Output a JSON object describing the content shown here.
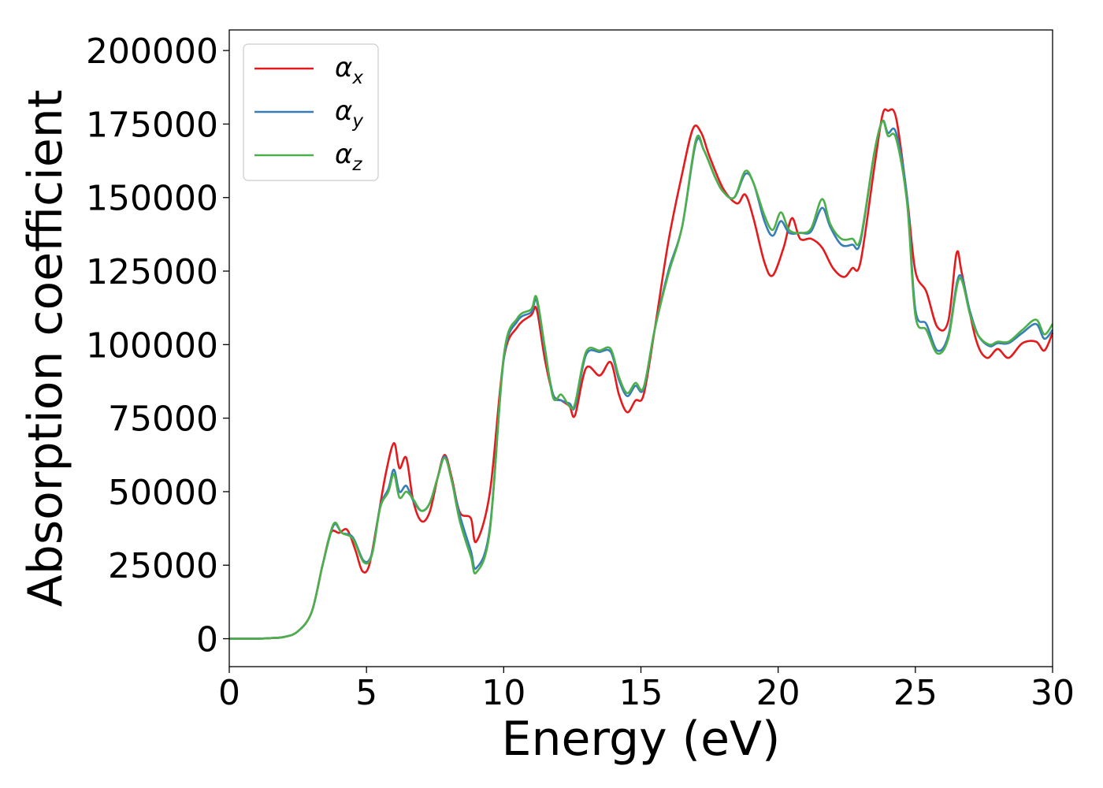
{
  "chart_data": {
    "type": "line",
    "title": "",
    "xlabel": "Energy (eV)",
    "ylabel": "Absorption coefficient",
    "xlim": [
      0,
      30
    ],
    "ylim": [
      -9500,
      207000
    ],
    "xticks": [
      "0",
      "5",
      "10",
      "15",
      "20",
      "25",
      "30"
    ],
    "yticks": [
      "0",
      "25000",
      "50000",
      "75000",
      "100000",
      "125000",
      "150000",
      "175000",
      "200000"
    ],
    "grid": false,
    "legend": "top-left",
    "series": [
      {
        "name": "αx",
        "base": "α",
        "sub": "x",
        "color": "#e41a1c",
        "points": [
          [
            0,
            0
          ],
          [
            1,
            0
          ],
          [
            1.5,
            200
          ],
          [
            2,
            600
          ],
          [
            2.5,
            2500
          ],
          [
            3,
            9000
          ],
          [
            3.4,
            25000
          ],
          [
            3.7,
            36000
          ],
          [
            4.0,
            36000
          ],
          [
            4.3,
            37000
          ],
          [
            4.6,
            30000
          ],
          [
            4.85,
            23000
          ],
          [
            5.1,
            25000
          ],
          [
            5.4,
            40000
          ],
          [
            5.7,
            56000
          ],
          [
            6.0,
            66500
          ],
          [
            6.2,
            58000
          ],
          [
            6.45,
            61500
          ],
          [
            6.7,
            47000
          ],
          [
            7.0,
            40000
          ],
          [
            7.3,
            43000
          ],
          [
            7.6,
            55000
          ],
          [
            7.85,
            62500
          ],
          [
            8.1,
            55000
          ],
          [
            8.4,
            43000
          ],
          [
            8.8,
            41000
          ],
          [
            9.0,
            33000
          ],
          [
            9.5,
            50000
          ],
          [
            10.0,
            95000
          ],
          [
            10.5,
            106000
          ],
          [
            11.0,
            110000
          ],
          [
            11.2,
            112000
          ],
          [
            11.5,
            95000
          ],
          [
            11.8,
            83000
          ],
          [
            12.1,
            81000
          ],
          [
            12.4,
            79000
          ],
          [
            12.6,
            76000
          ],
          [
            13.0,
            92000
          ],
          [
            13.5,
            89500
          ],
          [
            13.9,
            94000
          ],
          [
            14.2,
            83000
          ],
          [
            14.5,
            77000
          ],
          [
            14.8,
            81000
          ],
          [
            15.1,
            83000
          ],
          [
            15.5,
            105000
          ],
          [
            16.0,
            135000
          ],
          [
            16.5,
            158000
          ],
          [
            16.9,
            173500
          ],
          [
            17.2,
            172000
          ],
          [
            17.5,
            164000
          ],
          [
            18.0,
            153000
          ],
          [
            18.5,
            148000
          ],
          [
            18.8,
            151000
          ],
          [
            19.1,
            143000
          ],
          [
            19.5,
            128000
          ],
          [
            19.8,
            123500
          ],
          [
            20.2,
            133000
          ],
          [
            20.5,
            143000
          ],
          [
            20.8,
            136000
          ],
          [
            21.2,
            136000
          ],
          [
            21.6,
            133000
          ],
          [
            22.0,
            126000
          ],
          [
            22.4,
            123000
          ],
          [
            22.7,
            126000
          ],
          [
            23.0,
            128000
          ],
          [
            23.5,
            160000
          ],
          [
            23.8,
            178000
          ],
          [
            24.0,
            179500
          ],
          [
            24.3,
            177000
          ],
          [
            24.7,
            150000
          ],
          [
            25.0,
            125000
          ],
          [
            25.4,
            118000
          ],
          [
            25.8,
            106000
          ],
          [
            26.2,
            108000
          ],
          [
            26.5,
            131000
          ],
          [
            26.7,
            124000
          ],
          [
            27.2,
            102000
          ],
          [
            27.6,
            95500
          ],
          [
            28.0,
            98500
          ],
          [
            28.4,
            95500
          ],
          [
            28.9,
            100500
          ],
          [
            29.4,
            101000
          ],
          [
            29.7,
            98000
          ],
          [
            30.0,
            104000
          ]
        ]
      },
      {
        "name": "αy",
        "base": "α",
        "sub": "y",
        "color": "#377eb8",
        "points": [
          [
            0,
            0
          ],
          [
            1,
            0
          ],
          [
            1.5,
            200
          ],
          [
            2,
            600
          ],
          [
            2.5,
            2500
          ],
          [
            3,
            9000
          ],
          [
            3.4,
            25000
          ],
          [
            3.8,
            38500
          ],
          [
            4.1,
            36000
          ],
          [
            4.5,
            34500
          ],
          [
            4.9,
            26500
          ],
          [
            5.2,
            29000
          ],
          [
            5.5,
            45000
          ],
          [
            5.8,
            51000
          ],
          [
            6.0,
            57500
          ],
          [
            6.2,
            50000
          ],
          [
            6.45,
            52000
          ],
          [
            6.7,
            47000
          ],
          [
            7.0,
            43500
          ],
          [
            7.3,
            46000
          ],
          [
            7.6,
            55000
          ],
          [
            7.85,
            62000
          ],
          [
            8.1,
            54000
          ],
          [
            8.4,
            42000
          ],
          [
            8.8,
            30000
          ],
          [
            9.0,
            24000
          ],
          [
            9.5,
            38000
          ],
          [
            10.0,
            95000
          ],
          [
            10.5,
            108000
          ],
          [
            11.0,
            111000
          ],
          [
            11.2,
            115000
          ],
          [
            11.5,
            98000
          ],
          [
            11.8,
            83000
          ],
          [
            12.1,
            81000
          ],
          [
            12.4,
            80000
          ],
          [
            12.6,
            79000
          ],
          [
            13.0,
            96500
          ],
          [
            13.5,
            97500
          ],
          [
            13.9,
            97500
          ],
          [
            14.2,
            88000
          ],
          [
            14.5,
            82500
          ],
          [
            14.8,
            86000
          ],
          [
            15.1,
            85000
          ],
          [
            15.5,
            105000
          ],
          [
            16.0,
            125000
          ],
          [
            16.5,
            140000
          ],
          [
            17.0,
            168500
          ],
          [
            17.3,
            166000
          ],
          [
            17.7,
            157000
          ],
          [
            18.0,
            152000
          ],
          [
            18.4,
            150000
          ],
          [
            18.8,
            158000
          ],
          [
            19.1,
            155000
          ],
          [
            19.5,
            142000
          ],
          [
            19.8,
            137000
          ],
          [
            20.1,
            142000
          ],
          [
            20.4,
            138000
          ],
          [
            20.8,
            138000
          ],
          [
            21.2,
            138500
          ],
          [
            21.6,
            146500
          ],
          [
            21.9,
            140000
          ],
          [
            22.3,
            134000
          ],
          [
            22.7,
            134000
          ],
          [
            23.0,
            135000
          ],
          [
            23.5,
            165000
          ],
          [
            23.8,
            176000
          ],
          [
            24.0,
            172000
          ],
          [
            24.3,
            172000
          ],
          [
            24.7,
            150000
          ],
          [
            25.0,
            112000
          ],
          [
            25.4,
            107000
          ],
          [
            25.8,
            98000
          ],
          [
            26.2,
            103000
          ],
          [
            26.6,
            123500
          ],
          [
            27.0,
            111000
          ],
          [
            27.3,
            103000
          ],
          [
            27.7,
            99500
          ],
          [
            28.0,
            100500
          ],
          [
            28.4,
            100500
          ],
          [
            28.9,
            104000
          ],
          [
            29.4,
            107000
          ],
          [
            29.7,
            102000
          ],
          [
            30.0,
            105000
          ]
        ]
      },
      {
        "name": "αz",
        "base": "α",
        "sub": "z",
        "color": "#4daf4a",
        "points": [
          [
            0,
            0
          ],
          [
            1,
            0
          ],
          [
            1.5,
            200
          ],
          [
            2,
            600
          ],
          [
            2.5,
            2500
          ],
          [
            3,
            9000
          ],
          [
            3.4,
            25000
          ],
          [
            3.8,
            39000
          ],
          [
            4.1,
            36000
          ],
          [
            4.5,
            34000
          ],
          [
            4.9,
            26000
          ],
          [
            5.2,
            28500
          ],
          [
            5.5,
            44500
          ],
          [
            5.8,
            50000
          ],
          [
            6.0,
            56000
          ],
          [
            6.2,
            48000
          ],
          [
            6.45,
            50000
          ],
          [
            6.7,
            47500
          ],
          [
            7.0,
            43500
          ],
          [
            7.3,
            46000
          ],
          [
            7.6,
            55000
          ],
          [
            7.85,
            61500
          ],
          [
            8.1,
            54000
          ],
          [
            8.4,
            40000
          ],
          [
            8.8,
            28000
          ],
          [
            9.0,
            22500
          ],
          [
            9.5,
            37000
          ],
          [
            10.0,
            96000
          ],
          [
            10.5,
            109000
          ],
          [
            11.0,
            112000
          ],
          [
            11.2,
            116000
          ],
          [
            11.5,
            99000
          ],
          [
            11.8,
            82000
          ],
          [
            12.1,
            83000
          ],
          [
            12.4,
            79000
          ],
          [
            12.6,
            80000
          ],
          [
            13.0,
            97500
          ],
          [
            13.5,
            98000
          ],
          [
            13.9,
            98500
          ],
          [
            14.2,
            89000
          ],
          [
            14.5,
            83500
          ],
          [
            14.8,
            87000
          ],
          [
            15.1,
            85500
          ],
          [
            15.5,
            105000
          ],
          [
            16.0,
            124000
          ],
          [
            16.5,
            140000
          ],
          [
            17.0,
            169500
          ],
          [
            17.3,
            166000
          ],
          [
            17.7,
            157000
          ],
          [
            18.0,
            152000
          ],
          [
            18.4,
            150000
          ],
          [
            18.8,
            159000
          ],
          [
            19.1,
            155000
          ],
          [
            19.5,
            144000
          ],
          [
            19.8,
            139000
          ],
          [
            20.1,
            145000
          ],
          [
            20.4,
            139000
          ],
          [
            20.8,
            138000
          ],
          [
            21.2,
            139500
          ],
          [
            21.6,
            149500
          ],
          [
            21.9,
            141000
          ],
          [
            22.3,
            136000
          ],
          [
            22.7,
            136000
          ],
          [
            23.0,
            136000
          ],
          [
            23.5,
            165000
          ],
          [
            23.8,
            176000
          ],
          [
            24.0,
            171000
          ],
          [
            24.3,
            170000
          ],
          [
            24.7,
            148000
          ],
          [
            25.0,
            110000
          ],
          [
            25.4,
            105000
          ],
          [
            25.8,
            97000
          ],
          [
            26.2,
            102000
          ],
          [
            26.6,
            122500
          ],
          [
            27.0,
            110000
          ],
          [
            27.3,
            103000
          ],
          [
            27.7,
            100000
          ],
          [
            28.0,
            101000
          ],
          [
            28.4,
            101000
          ],
          [
            28.9,
            105000
          ],
          [
            29.4,
            108500
          ],
          [
            29.7,
            103500
          ],
          [
            30.0,
            107000
          ]
        ]
      }
    ]
  }
}
